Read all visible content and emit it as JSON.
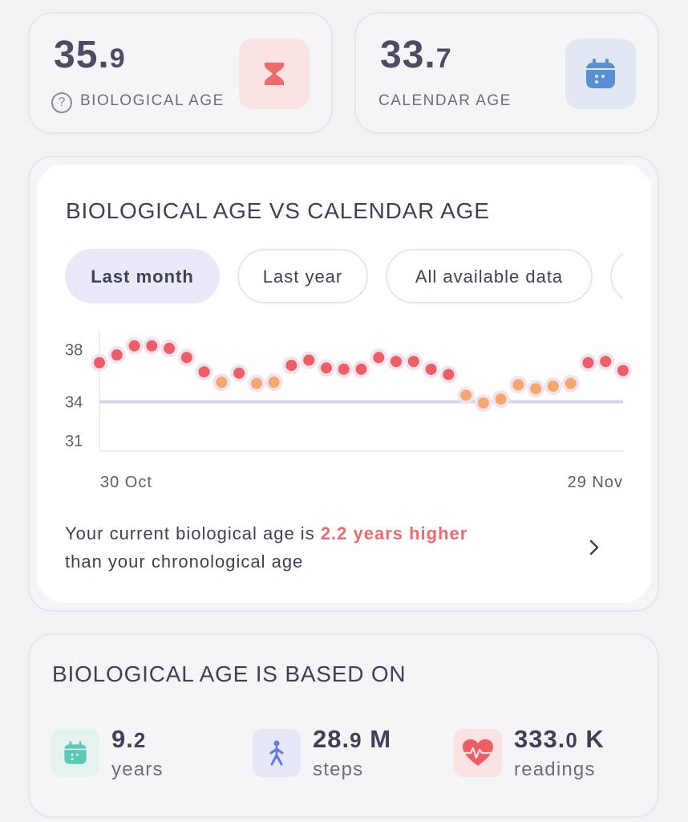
{
  "stats": {
    "biological": {
      "int": "35.",
      "dec": "9",
      "label": "BIOLOGICAL AGE",
      "icon": "hourglass-icon",
      "color": "#ee6a6c"
    },
    "calendar": {
      "int": "33.",
      "dec": "7",
      "label": "CALENDAR AGE",
      "icon": "calendar-icon",
      "color": "#5a8fd6"
    }
  },
  "chart_card": {
    "title": "BIOLOGICAL AGE VS CALENDAR AGE",
    "tabs": [
      "Last month",
      "Last year",
      "All available data"
    ],
    "active_tab": "Last month",
    "summary_prefix": "Your current biological age is ",
    "summary_highlight": "2.2 years higher",
    "summary_suffix": "than your chronological age"
  },
  "chart_data": {
    "type": "scatter",
    "x_labels": [
      "30 Oct",
      "29 Nov"
    ],
    "y_ticks": [
      38,
      34,
      31
    ],
    "ylim": [
      30.2,
      39.4
    ],
    "reference_line": 34.0,
    "reference_line_color": "#d6d6e8",
    "high_color": "#ee5e64",
    "low_color": "#f5a86b",
    "values": [
      37.0,
      37.6,
      38.3,
      38.3,
      38.1,
      37.4,
      36.3,
      35.5,
      36.2,
      35.4,
      35.5,
      36.8,
      37.2,
      36.6,
      36.5,
      36.5,
      37.4,
      37.1,
      37.1,
      36.5,
      36.1,
      34.5,
      33.9,
      34.2,
      35.3,
      35.0,
      35.2,
      35.4,
      37.0,
      37.1,
      36.4
    ]
  },
  "based_on": {
    "title": "BIOLOGICAL AGE IS BASED ON",
    "metrics": [
      {
        "int": "9.",
        "dec": "2",
        "unit": "",
        "label": "years",
        "icon": "calendar-icon",
        "color": "#5dc9b5",
        "bg": "#e5f3f0"
      },
      {
        "int": "28.",
        "dec": "9",
        "unit": " M",
        "label": "steps",
        "icon": "walking-person-icon",
        "color": "#6777dd",
        "bg": "#e6e8f7"
      },
      {
        "int": "333.",
        "dec": "0",
        "unit": " K",
        "label": "readings",
        "icon": "heart-pulse-icon",
        "color": "#ee5e64",
        "bg": "#fbe3e4"
      }
    ]
  }
}
